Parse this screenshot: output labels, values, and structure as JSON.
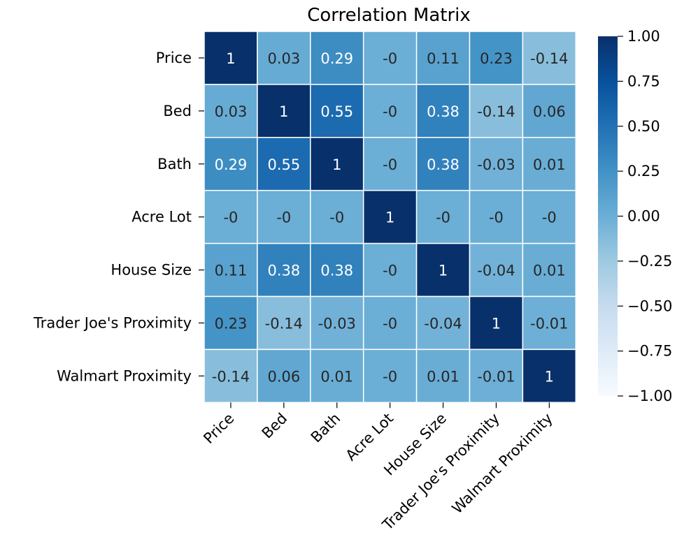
{
  "chart_data": {
    "type": "heatmap",
    "title": "Correlation Matrix",
    "xlabel": "",
    "ylabel": "",
    "row_labels": [
      "Price",
      "Bed",
      "Bath",
      "Acre Lot",
      "House Size",
      "Trader Joe's Proximity",
      "Walmart Proximity"
    ],
    "col_labels": [
      "Price",
      "Bed",
      "Bath",
      "Acre Lot",
      "House Size",
      "Trader Joe's Proximity",
      "Walmart Proximity"
    ],
    "values": [
      [
        1,
        0.03,
        0.29,
        -0.0,
        0.11,
        0.23,
        -0.14
      ],
      [
        0.03,
        1,
        0.55,
        -0.0,
        0.38,
        -0.14,
        0.06
      ],
      [
        0.29,
        0.55,
        1,
        -0.0,
        0.38,
        -0.03,
        0.01
      ],
      [
        -0.0,
        -0.0,
        -0.0,
        1,
        -0.0,
        -0.0,
        -0.0
      ],
      [
        0.11,
        0.38,
        0.38,
        -0.0,
        1,
        -0.04,
        0.01
      ],
      [
        0.23,
        -0.14,
        -0.03,
        -0.0,
        -0.04,
        1,
        -0.01
      ],
      [
        -0.14,
        0.06,
        0.01,
        -0.0,
        0.01,
        -0.01,
        1
      ]
    ],
    "cell_text": [
      [
        "1",
        "0.03",
        "0.29",
        "-0",
        "0.11",
        "0.23",
        "-0.14"
      ],
      [
        "0.03",
        "1",
        "0.55",
        "-0",
        "0.38",
        "-0.14",
        "0.06"
      ],
      [
        "0.29",
        "0.55",
        "1",
        "-0",
        "0.38",
        "-0.03",
        "0.01"
      ],
      [
        "-0",
        "-0",
        "-0",
        "1",
        "-0",
        "-0",
        "-0"
      ],
      [
        "0.11",
        "0.38",
        "0.38",
        "-0",
        "1",
        "-0.04",
        "0.01"
      ],
      [
        "0.23",
        "-0.14",
        "-0.03",
        "-0",
        "-0.04",
        "1",
        "-0.01"
      ],
      [
        "-0.14",
        "0.06",
        "0.01",
        "-0",
        "0.01",
        "-0.01",
        "1"
      ]
    ],
    "vmin": -1,
    "vmax": 1,
    "colormap": "Blues",
    "colormap_stops": [
      "#f7fbff",
      "#deebf7",
      "#c6dbef",
      "#9ecae1",
      "#6baed6",
      "#4292c6",
      "#2171b5",
      "#08519c",
      "#08306b"
    ],
    "colorbar_ticks": [
      1.0,
      0.75,
      0.5,
      0.25,
      0.0,
      -0.25,
      -0.5,
      -0.75,
      -1.0
    ],
    "colorbar_tick_labels": [
      "1.00",
      "0.75",
      "0.50",
      "0.25",
      "0.00",
      "−0.25",
      "−0.50",
      "−0.75",
      "−1.00"
    ],
    "grid_line_color": "#ffffff",
    "grid": true,
    "legend": "colorbar-right",
    "x_tick_rotation": "45 degrees"
  }
}
